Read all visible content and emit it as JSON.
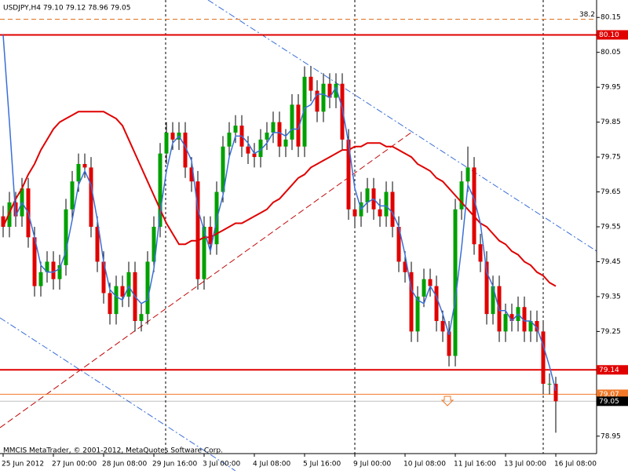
{
  "chart_data": {
    "type": "candlestick",
    "title": "USDJPY,H4  79.10 79.12 78.96 79.05",
    "footer": "MMCIS MetaTrader, © 2001-2012, MetaQuotes Software Corp.",
    "categories": [
      "25 Jun 2012",
      null,
      null,
      null,
      null,
      null,
      null,
      null,
      "27 Jun 00:00",
      null,
      null,
      null,
      null,
      null,
      null,
      null,
      "28 Jun 08:00",
      null,
      null,
      null,
      null,
      null,
      null,
      null,
      "29 Jun 16:00",
      null,
      null,
      null,
      null,
      null,
      null,
      null,
      "3 Jul 00:00",
      null,
      null,
      null,
      null,
      null,
      null,
      null,
      "4 Jul 08:00",
      null,
      null,
      null,
      null,
      null,
      null,
      null,
      "5 Jul 16:00",
      null,
      null,
      null,
      null,
      null,
      null,
      null,
      "9 Jul 00:00",
      null,
      null,
      null,
      null,
      null,
      null,
      null,
      "10 Jul 08:00",
      null,
      null,
      null,
      null,
      null,
      null,
      null,
      "11 Jul 16:00",
      null,
      null,
      null,
      null,
      null,
      null,
      null,
      "13 Jul 00:00",
      null,
      null,
      null,
      null,
      null,
      null,
      null,
      "16 Jul 08:00"
    ],
    "open": [
      79.58,
      79.55,
      79.62,
      79.58,
      79.66,
      79.52,
      79.38,
      79.42,
      79.45,
      79.4,
      79.44,
      79.6,
      79.68,
      79.73,
      79.72,
      79.55,
      79.45,
      79.36,
      79.3,
      79.38,
      79.35,
      79.42,
      79.28,
      79.3,
      79.45,
      79.55,
      79.76,
      79.82,
      79.8,
      79.82,
      79.72,
      79.68,
      79.4,
      79.55,
      79.5,
      79.65,
      79.78,
      79.82,
      79.84,
      79.78,
      79.76,
      79.75,
      79.8,
      79.82,
      79.85,
      79.78,
      79.8,
      79.9,
      79.78,
      79.98,
      79.94,
      79.88,
      79.96,
      79.92,
      79.96,
      79.8,
      79.6,
      79.58,
      79.62,
      79.66,
      79.6,
      79.58,
      79.65,
      79.55,
      79.45,
      79.42,
      79.25,
      79.35,
      79.4,
      79.38,
      79.28,
      79.25,
      79.18,
      79.6,
      79.68,
      79.72,
      79.5,
      79.45,
      79.3,
      79.38,
      79.25,
      79.3,
      79.28,
      79.32,
      79.25,
      79.28,
      79.25,
      79.1,
      79.1
    ],
    "high": [
      79.61,
      79.65,
      79.65,
      79.69,
      79.69,
      79.55,
      79.45,
      79.48,
      79.48,
      79.47,
      79.63,
      79.71,
      79.76,
      79.76,
      79.75,
      79.58,
      79.48,
      79.39,
      79.41,
      79.41,
      79.45,
      79.45,
      79.33,
      79.48,
      79.58,
      79.79,
      79.85,
      79.85,
      79.85,
      79.85,
      79.75,
      79.71,
      79.58,
      79.58,
      79.68,
      79.81,
      79.85,
      79.87,
      79.87,
      79.81,
      79.79,
      79.83,
      79.85,
      79.88,
      79.88,
      79.83,
      79.93,
      79.93,
      80.01,
      80.01,
      79.97,
      79.99,
      79.99,
      79.99,
      79.99,
      79.83,
      79.63,
      79.65,
      79.69,
      79.69,
      79.63,
      79.68,
      79.68,
      79.58,
      79.48,
      79.45,
      79.38,
      79.43,
      79.43,
      79.41,
      79.31,
      79.28,
      79.63,
      79.71,
      79.78,
      79.75,
      79.53,
      79.48,
      79.41,
      79.41,
      79.33,
      79.33,
      79.35,
      79.35,
      79.31,
      79.31,
      79.28,
      79.13,
      79.12
    ],
    "low": [
      79.52,
      79.52,
      79.55,
      79.55,
      79.49,
      79.35,
      79.35,
      79.39,
      79.37,
      79.37,
      79.41,
      79.57,
      79.65,
      79.69,
      79.52,
      79.42,
      79.33,
      79.27,
      79.27,
      79.32,
      79.32,
      79.25,
      79.25,
      79.27,
      79.42,
      79.52,
      79.73,
      79.77,
      79.77,
      79.69,
      79.65,
      79.37,
      79.37,
      79.47,
      79.47,
      79.62,
      79.75,
      79.79,
      79.75,
      79.73,
      79.72,
      79.72,
      79.77,
      79.79,
      79.75,
      79.75,
      79.77,
      79.75,
      79.75,
      79.91,
      79.85,
      79.85,
      79.89,
      79.89,
      79.77,
      79.57,
      79.55,
      79.55,
      79.59,
      79.57,
      79.55,
      79.55,
      79.52,
      79.42,
      79.39,
      79.22,
      79.22,
      79.32,
      79.35,
      79.25,
      79.22,
      79.15,
      79.15,
      79.57,
      79.65,
      79.47,
      79.42,
      79.27,
      79.27,
      79.22,
      79.22,
      79.25,
      79.25,
      79.22,
      79.22,
      79.22,
      79.07,
      79.07,
      78.96
    ],
    "close": [
      79.55,
      79.62,
      79.58,
      79.66,
      79.52,
      79.38,
      79.42,
      79.45,
      79.4,
      79.44,
      79.6,
      79.68,
      79.73,
      79.72,
      79.55,
      79.45,
      79.36,
      79.3,
      79.38,
      79.35,
      79.42,
      79.28,
      79.3,
      79.45,
      79.55,
      79.76,
      79.82,
      79.8,
      79.82,
      79.72,
      79.68,
      79.4,
      79.55,
      79.5,
      79.65,
      79.78,
      79.82,
      79.84,
      79.78,
      79.76,
      79.75,
      79.8,
      79.82,
      79.85,
      79.78,
      79.8,
      79.9,
      79.78,
      79.98,
      79.94,
      79.88,
      79.96,
      79.92,
      79.96,
      79.8,
      79.6,
      79.58,
      79.62,
      79.66,
      79.6,
      79.58,
      79.65,
      79.55,
      79.45,
      79.42,
      79.25,
      79.35,
      79.4,
      79.38,
      79.28,
      79.25,
      79.18,
      79.6,
      79.68,
      79.72,
      79.5,
      79.45,
      79.3,
      79.38,
      79.25,
      79.3,
      79.28,
      79.32,
      79.25,
      79.28,
      79.25,
      79.1,
      79.1,
      79.05
    ],
    "up_color": "#00a000",
    "down_color": "#e00000",
    "series": [
      {
        "color": "#e00000",
        "values": [
          79.55,
          79.59,
          79.63,
          79.66,
          79.7,
          79.73,
          79.77,
          79.8,
          79.83,
          79.85,
          79.86,
          79.87,
          79.88,
          79.88,
          79.88,
          79.88,
          79.88,
          79.87,
          79.86,
          79.84,
          79.8,
          79.76,
          79.72,
          79.68,
          79.64,
          79.6,
          79.56,
          79.53,
          79.5,
          79.5,
          79.51,
          79.51,
          79.52,
          79.52,
          79.53,
          79.54,
          79.55,
          79.56,
          79.56,
          79.57,
          79.58,
          79.59,
          79.6,
          79.62,
          79.63,
          79.65,
          79.67,
          79.69,
          79.7,
          79.72,
          79.73,
          79.74,
          79.75,
          79.76,
          79.77,
          79.77,
          79.78,
          79.78,
          79.79,
          79.79,
          79.79,
          79.78,
          79.78,
          79.77,
          79.76,
          79.75,
          79.73,
          79.72,
          79.71,
          79.69,
          79.68,
          79.66,
          79.64,
          79.62,
          79.6,
          79.58,
          79.56,
          79.55,
          79.53,
          79.51,
          79.5,
          79.48,
          79.47,
          79.45,
          79.44,
          79.42,
          79.41,
          79.39,
          79.38
        ]
      },
      {
        "color": "#3a6fd8",
        "values": [
          80.1,
          79.85,
          79.58,
          79.62,
          79.59,
          79.52,
          79.44,
          79.42,
          79.42,
          79.43,
          79.48,
          79.57,
          79.67,
          79.71,
          79.67,
          79.57,
          79.45,
          79.37,
          79.35,
          79.34,
          79.38,
          79.35,
          79.33,
          79.34,
          79.43,
          79.59,
          79.71,
          79.79,
          79.81,
          79.78,
          79.74,
          79.6,
          79.54,
          79.48,
          79.57,
          79.64,
          79.75,
          79.81,
          79.81,
          79.79,
          79.76,
          79.77,
          79.79,
          79.82,
          79.82,
          79.81,
          79.83,
          79.83,
          79.89,
          79.9,
          79.93,
          79.93,
          79.92,
          79.95,
          79.89,
          79.79,
          79.66,
          79.6,
          79.62,
          79.63,
          79.61,
          79.61,
          79.59,
          79.55,
          79.47,
          79.37,
          79.34,
          79.33,
          79.38,
          79.35,
          79.3,
          79.24,
          79.34,
          79.49,
          79.67,
          79.63,
          79.56,
          79.42,
          79.38,
          79.31,
          79.31,
          79.28,
          79.3,
          79.28,
          79.28,
          79.26,
          79.21,
          79.15,
          79.08
        ]
      }
    ],
    "levels": [
      {
        "value": 80.1,
        "label": "80.10",
        "color": "#e00000"
      },
      {
        "value": 79.14,
        "label": "79.14",
        "color": "#e00000"
      },
      {
        "value": 79.07,
        "label": "79.07",
        "color": "#f07828"
      },
      {
        "value": 79.05,
        "label": "79.05",
        "color": "#000000"
      }
    ],
    "fib": {
      "value": 80.145,
      "label": "38.2",
      "color": "#e07020"
    },
    "ylim": [
      78.9,
      80.2
    ],
    "yticks": [
      80.15,
      80.05,
      79.95,
      79.85,
      79.75,
      79.65,
      79.55,
      79.45,
      79.35,
      79.25,
      78.95
    ]
  }
}
